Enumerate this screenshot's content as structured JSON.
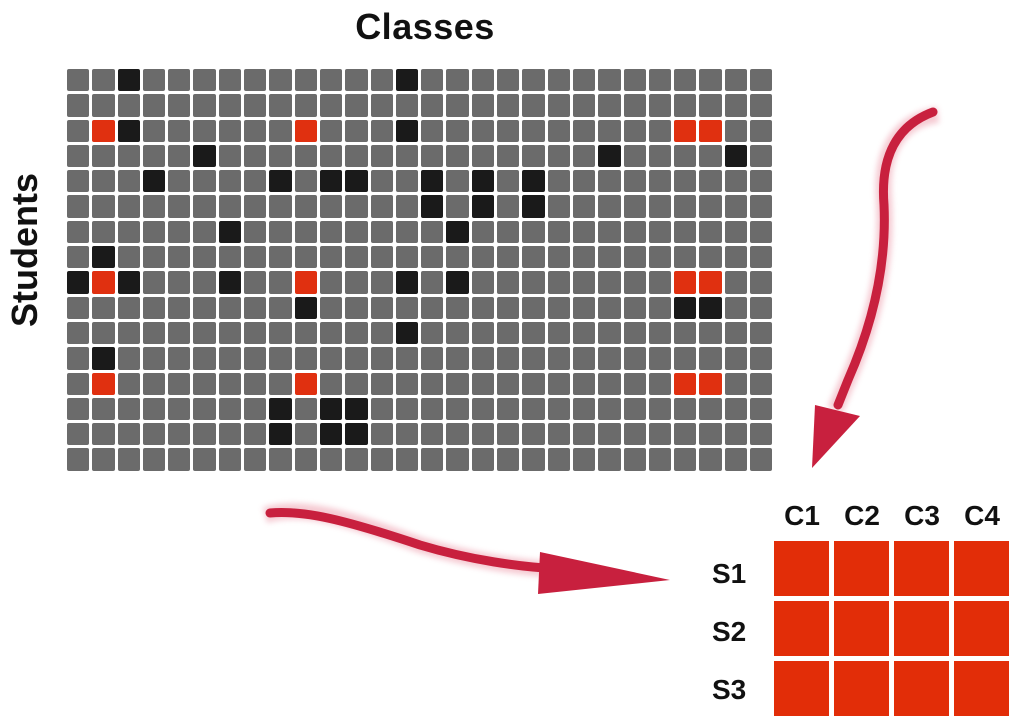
{
  "title": "Classes",
  "y_label": "Students",
  "grid": {
    "rows": 16,
    "cols": 28,
    "colors": {
      "empty": "#6b6b6b",
      "dark": "#1a1a1a",
      "highlight": "#e03010"
    },
    "dark_cells": [
      [
        0,
        2
      ],
      [
        0,
        13
      ],
      [
        2,
        2
      ],
      [
        2,
        13
      ],
      [
        3,
        5
      ],
      [
        3,
        21
      ],
      [
        3,
        26
      ],
      [
        4,
        3
      ],
      [
        4,
        8
      ],
      [
        4,
        10
      ],
      [
        4,
        11
      ],
      [
        4,
        14
      ],
      [
        4,
        16
      ],
      [
        4,
        18
      ],
      [
        5,
        14
      ],
      [
        5,
        16
      ],
      [
        5,
        18
      ],
      [
        6,
        6
      ],
      [
        6,
        15
      ],
      [
        7,
        1
      ],
      [
        8,
        0
      ],
      [
        8,
        2
      ],
      [
        8,
        6
      ],
      [
        8,
        13
      ],
      [
        8,
        15
      ],
      [
        9,
        9
      ],
      [
        9,
        24
      ],
      [
        9,
        25
      ],
      [
        10,
        13
      ],
      [
        11,
        1
      ],
      [
        13,
        8
      ],
      [
        13,
        10
      ],
      [
        13,
        11
      ],
      [
        14,
        8
      ],
      [
        14,
        10
      ],
      [
        14,
        11
      ]
    ],
    "red_cells": [
      [
        2,
        1
      ],
      [
        2,
        9
      ],
      [
        2,
        24
      ],
      [
        2,
        25
      ],
      [
        8,
        1
      ],
      [
        8,
        9
      ],
      [
        8,
        24
      ],
      [
        8,
        25
      ],
      [
        12,
        1
      ],
      [
        12,
        9
      ],
      [
        12,
        24
      ],
      [
        12,
        25
      ]
    ]
  },
  "matrix": {
    "col_labels": [
      "C1",
      "C2",
      "C3",
      "C4"
    ],
    "row_labels": [
      "S1",
      "S2",
      "S3"
    ],
    "color": "#e22d08"
  },
  "arrow_color": "#c8203e"
}
